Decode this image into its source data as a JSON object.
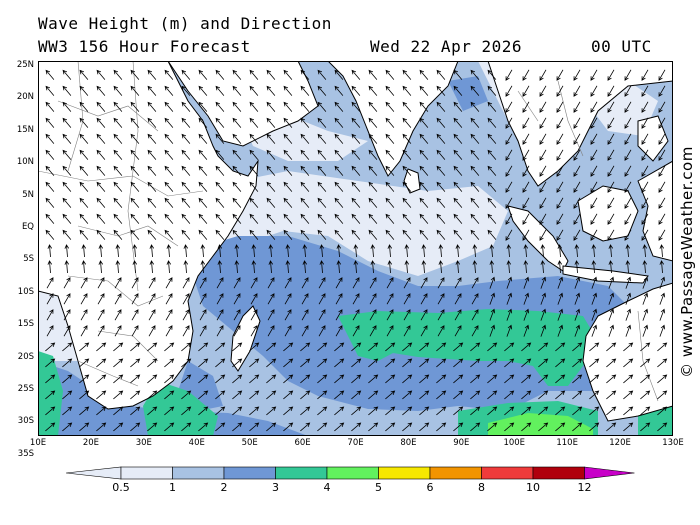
{
  "header": {
    "line1": "Wave Height (m) and Direction",
    "model": "WW3 156 Hour Forecast",
    "date": "Wed 22 Apr 2026",
    "time": "00 UTC"
  },
  "credit": "© www.PassageWeather.com",
  "axes": {
    "lat_labels": [
      "25N",
      "20N",
      "15N",
      "10N",
      "5N",
      "EQ",
      "5S",
      "10S",
      "15S",
      "20S",
      "25S",
      "30S",
      "35S"
    ],
    "lon_labels": [
      "10E",
      "20E",
      "30E",
      "40E",
      "50E",
      "60E",
      "70E",
      "80E",
      "90E",
      "100E",
      "110E",
      "120E",
      "130E"
    ]
  },
  "colorbar": {
    "labels": [
      "0.5",
      "1",
      "2",
      "3",
      "4",
      "5",
      "6",
      "8",
      "10",
      "12"
    ],
    "colors": [
      "#e6ecf7",
      "#a8c2e3",
      "#6f97d5",
      "#33c896",
      "#62f15e",
      "#f6e800",
      "#f29400",
      "#ef3b3b",
      "#b0000d",
      "#c800c8"
    ]
  },
  "map": {
    "land_color": "#ffffff",
    "ocean_base": "#a8c2e3",
    "arrow_color": "#000000",
    "coast_color": "#000000"
  }
}
